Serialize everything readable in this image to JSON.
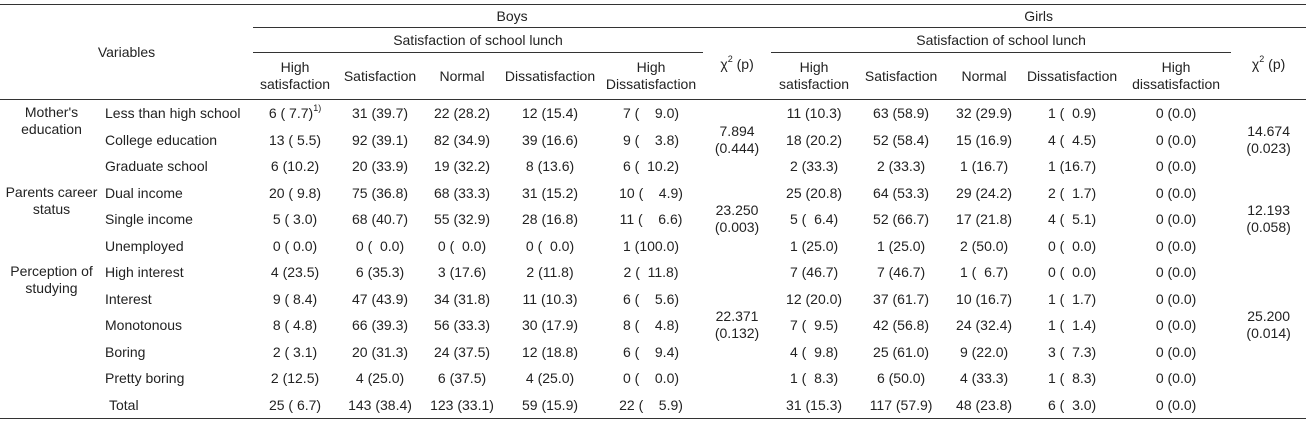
{
  "header": {
    "variables": "Variables",
    "boys": "Boys",
    "girls": "Girls",
    "satisfaction_group": "Satisfaction of school lunch",
    "chi": "χ",
    "chi_sup": "2",
    "chi_p": " (p)",
    "boys_cols": [
      "High satisfaction",
      "Satisfaction",
      "Normal",
      "Dissatisfaction",
      "High Dissatisfaction"
    ],
    "girls_cols": [
      "High satisfaction",
      "Satisfaction",
      "Normal",
      "Dissatisfaction",
      "High dissatisfaction"
    ]
  },
  "footnote_mark": "1)",
  "groups": [
    {
      "category": [
        "Mother's",
        "education"
      ],
      "boys_chi": [
        "7.894",
        "(0.444)"
      ],
      "girls_chi": [
        "14.674",
        "(0.023)"
      ],
      "rows": [
        {
          "label": "Less than high school",
          "boys": [
            "6 ( 7.7)",
            "31 (39.7)",
            "22 (28.2)",
            "12 (15.4)",
            "7 (    9.0)"
          ],
          "girls": [
            "11 (10.3)",
            "63 (58.9)",
            "32 (29.9)",
            "1 (  0.9)",
            "0 (0.0)"
          ]
        },
        {
          "label": "College education",
          "boys": [
            "13 ( 5.5)",
            "92 (39.1)",
            "82 (34.9)",
            "39 (16.6)",
            "9 (    3.8)"
          ],
          "girls": [
            "18 (20.2)",
            "52 (58.4)",
            "15 (16.9)",
            "4 (  4.5)",
            "0 (0.0)"
          ]
        },
        {
          "label": "Graduate school",
          "boys": [
            "6 (10.2)",
            "20 (33.9)",
            "19 (32.2)",
            "8 (13.6)",
            "6 (  10.2)"
          ],
          "girls": [
            "2 (33.3)",
            "2 (33.3)",
            "1 (16.7)",
            "1 (16.7)",
            "0 (0.0)"
          ]
        }
      ]
    },
    {
      "category": [
        "Parents career",
        "status"
      ],
      "boys_chi": [
        "23.250",
        "(0.003)"
      ],
      "girls_chi": [
        "12.193",
        "(0.058)"
      ],
      "rows": [
        {
          "label": "Dual income",
          "boys": [
            "20 ( 9.8)",
            "75 (36.8)",
            "68 (33.3)",
            "31 (15.2)",
            "10 (    4.9)"
          ],
          "girls": [
            "25 (20.8)",
            "64 (53.3)",
            "29 (24.2)",
            "2 (  1.7)",
            "0 (0.0)"
          ]
        },
        {
          "label": "Single income",
          "boys": [
            "5 ( 3.0)",
            "68 (40.7)",
            "55 (32.9)",
            "28 (16.8)",
            "11 (    6.6)"
          ],
          "girls": [
            "5 (  6.4)",
            "52 (66.7)",
            "17 (21.8)",
            "4 (  5.1)",
            "0 (0.0)"
          ]
        },
        {
          "label": "Unemployed",
          "boys": [
            "0 ( 0.0)",
            "0 (  0.0)",
            "0 (  0.0)",
            "0 (  0.0)",
            "1 (100.0)"
          ],
          "girls": [
            "1 (25.0)",
            "1 (25.0)",
            "2 (50.0)",
            "0 (  0.0)",
            "0 (0.0)"
          ]
        }
      ]
    },
    {
      "category": [
        "Perception of",
        "studying"
      ],
      "boys_chi": [
        "22.371",
        "(0.132)"
      ],
      "girls_chi": [
        "25.200",
        "(0.014)"
      ],
      "rows": [
        {
          "label": "High interest",
          "boys": [
            "4 (23.5)",
            "6 (35.3)",
            "3 (17.6)",
            "2 (11.8)",
            "2 (  11.8)"
          ],
          "girls": [
            "7 (46.7)",
            "7 (46.7)",
            "1 (  6.7)",
            "0 (  0.0)",
            "0 (0.0)"
          ]
        },
        {
          "label": "Interest",
          "boys": [
            "9 ( 8.4)",
            "47 (43.9)",
            "34 (31.8)",
            "11 (10.3)",
            "6 (    5.6)"
          ],
          "girls": [
            "12 (20.0)",
            "37 (61.7)",
            "10 (16.7)",
            "1 (  1.7)",
            "0 (0.0)"
          ]
        },
        {
          "label": "Monotonous",
          "boys": [
            "8 ( 4.8)",
            "66 (39.3)",
            "56 (33.3)",
            "30 (17.9)",
            "8 (    4.8)"
          ],
          "girls": [
            "7 (  9.5)",
            "42 (56.8)",
            "24 (32.4)",
            "1 (  1.4)",
            "0 (0.0)"
          ]
        },
        {
          "label": "Boring",
          "boys": [
            "2 ( 3.1)",
            "20 (31.3)",
            "24 (37.5)",
            "12 (18.8)",
            "6 (    9.4)"
          ],
          "girls": [
            "4 (  9.8)",
            "25 (61.0)",
            "9 (22.0)",
            "3 (  7.3)",
            "0 (0.0)"
          ]
        },
        {
          "label": "Pretty boring",
          "boys": [
            "2 (12.5)",
            "4 (25.0)",
            "6 (37.5)",
            "4 (25.0)",
            "0 (    0.0)"
          ],
          "girls": [
            "1 (  8.3)",
            "6 (50.0)",
            "4 (33.3)",
            "1 (  8.3)",
            "0 (0.0)"
          ]
        }
      ]
    }
  ],
  "total": {
    "label": "Total",
    "boys": [
      "25 ( 6.7)",
      "143 (38.4)",
      "123 (33.1)",
      "59 (15.9)",
      "22 (    5.9)"
    ],
    "girls": [
      "31 (15.3)",
      "117 (57.9)",
      "48 (23.8)",
      "6 (  3.0)",
      "0 (0.0)"
    ]
  }
}
